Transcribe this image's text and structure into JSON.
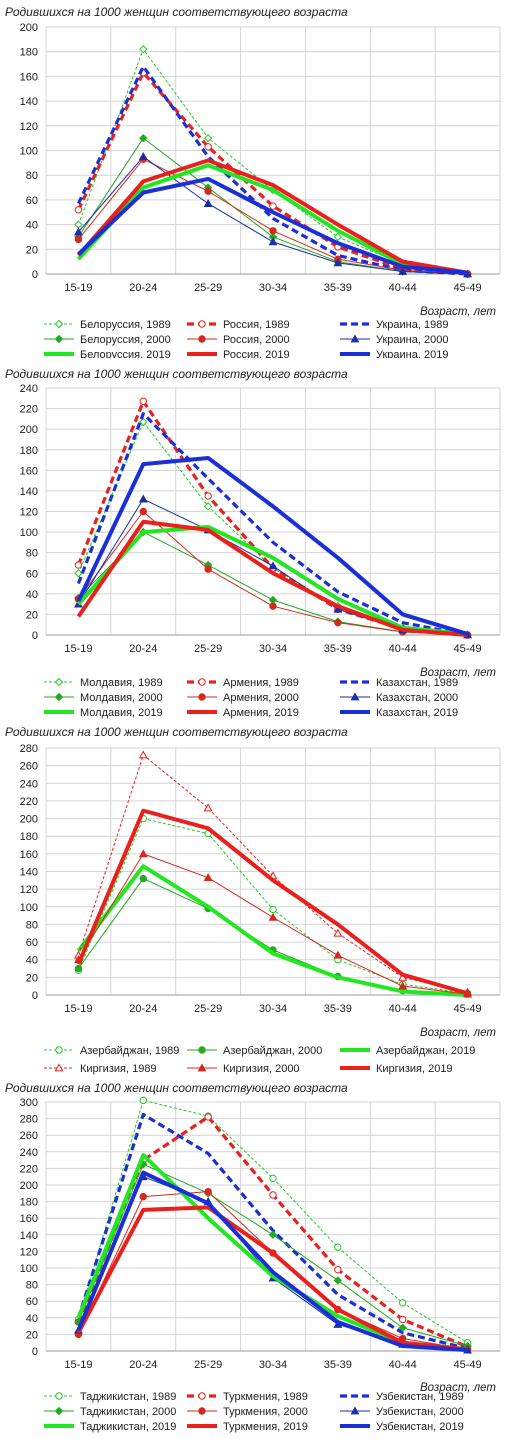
{
  "charts": [
    {
      "type": "line",
      "title": "Родившихся на 1000 женщин соответствующего возраста",
      "xlabel": "Возраст, лет",
      "ylabel": "",
      "categories": [
        "15-19",
        "20-24",
        "25-29",
        "30-34",
        "35-39",
        "40-44",
        "45-49"
      ],
      "ylim": [
        0,
        200
      ],
      "ystep": 20,
      "legend_cols": 3,
      "series": [
        {
          "name": "Белоруссия, 1989",
          "color": "#22cc22",
          "style": "thin-dash",
          "marker": "diamond-open",
          "values": [
            40,
            182,
            110,
            68,
            30,
            8,
            0
          ]
        },
        {
          "name": "Россия, 1989",
          "color": "#e8211d",
          "style": "thick-dash",
          "marker": "circle-open",
          "values": [
            52,
            163,
            103,
            55,
            22,
            4,
            0
          ]
        },
        {
          "name": "Украина, 1989",
          "color": "#1a2fd6",
          "style": "thick-dash",
          "marker": "none",
          "values": [
            57,
            168,
            95,
            45,
            15,
            3,
            0
          ]
        },
        {
          "name": "Белоруссия, 2000",
          "color": "#22aa22",
          "style": "thin",
          "marker": "diamond",
          "values": [
            30,
            110,
            70,
            30,
            10,
            2,
            0
          ]
        },
        {
          "name": "Россия, 2000",
          "color": "#d42a1e",
          "style": "thin",
          "marker": "circle",
          "values": [
            28,
            93,
            67,
            35,
            12,
            3,
            0
          ]
        },
        {
          "name": "Украина, 2000",
          "color": "#1a2fa6",
          "style": "thin",
          "marker": "triangle",
          "values": [
            34,
            95,
            57,
            26,
            9,
            2,
            0
          ]
        },
        {
          "name": "Белоруссия, 2019",
          "color": "#22e622",
          "style": "thick",
          "marker": "none",
          "values": [
            12,
            70,
            88,
            68,
            35,
            8,
            1
          ]
        },
        {
          "name": "Россия, 2019",
          "color": "#e8211d",
          "style": "thick",
          "marker": "none",
          "values": [
            15,
            75,
            92,
            72,
            40,
            10,
            1
          ]
        },
        {
          "name": "Украина, 2019",
          "color": "#1a2fd6",
          "style": "thick",
          "marker": "none",
          "values": [
            16,
            66,
            77,
            50,
            25,
            6,
            1
          ]
        }
      ]
    },
    {
      "type": "line",
      "title": "Родившихся на 1000 женщин соответствующего возраста",
      "xlabel": "Возраст, лет",
      "ylabel": "",
      "categories": [
        "15-19",
        "20-24",
        "25-29",
        "30-34",
        "35-39",
        "40-44",
        "45-49"
      ],
      "ylim": [
        0,
        240
      ],
      "ystep": 20,
      "legend_cols": 3,
      "series": [
        {
          "name": "Молдавия, 1989",
          "color": "#22cc22",
          "style": "thin-dash",
          "marker": "diamond-open",
          "values": [
            60,
            207,
            125,
            65,
            28,
            7,
            0
          ]
        },
        {
          "name": "Армения, 1989",
          "color": "#e8211d",
          "style": "thick-dash",
          "marker": "circle-open",
          "values": [
            68,
            227,
            135,
            65,
            25,
            6,
            0
          ]
        },
        {
          "name": "Казахстан, 1989",
          "color": "#1a2fd6",
          "style": "thick-dash",
          "marker": "none",
          "values": [
            50,
            215,
            152,
            90,
            42,
            12,
            0
          ]
        },
        {
          "name": "Молдавия, 2000",
          "color": "#22aa22",
          "style": "thin",
          "marker": "diamond",
          "values": [
            36,
            100,
            68,
            34,
            13,
            3,
            0
          ]
        },
        {
          "name": "Армения, 2000",
          "color": "#d42a1e",
          "style": "thin",
          "marker": "circle",
          "values": [
            35,
            120,
            64,
            28,
            12,
            3,
            0
          ]
        },
        {
          "name": "Казахстан, 2000",
          "color": "#1a2fa6",
          "style": "thin",
          "marker": "triangle",
          "values": [
            30,
            132,
            102,
            67,
            25,
            5,
            0
          ]
        },
        {
          "name": "Молдавия, 2019",
          "color": "#22e622",
          "style": "thick",
          "marker": "none",
          "values": [
            30,
            100,
            105,
            75,
            35,
            7,
            1
          ]
        },
        {
          "name": "Армения, 2019",
          "color": "#e8211d",
          "style": "thick",
          "marker": "none",
          "values": [
            18,
            110,
            102,
            60,
            28,
            5,
            0
          ]
        },
        {
          "name": "Казахстан, 2019",
          "color": "#1a2fd6",
          "style": "thick",
          "marker": "none",
          "values": [
            33,
            166,
            172,
            125,
            75,
            20,
            1
          ]
        }
      ]
    },
    {
      "type": "line",
      "title": "Родившихся на 1000 женщин соответствующего возраста",
      "xlabel": "Возраст, лет",
      "ylabel": "",
      "categories": [
        "15-19",
        "20-24",
        "25-29",
        "30-34",
        "35-39",
        "40-44",
        "45-49"
      ],
      "ylim": [
        0,
        280
      ],
      "ystep": 20,
      "legend_cols": 3,
      "series": [
        {
          "name": "Азербайджан, 1989",
          "color": "#22cc22",
          "style": "thin-dash",
          "marker": "circle-open",
          "values": [
            28,
            200,
            183,
            97,
            40,
            12,
            2
          ]
        },
        {
          "name": "Азербайджан, 2000",
          "color": "#22aa22",
          "style": "thin",
          "marker": "circle",
          "values": [
            30,
            132,
            98,
            51,
            21,
            5,
            1
          ]
        },
        {
          "name": "Азербайджан, 2019",
          "color": "#22e622",
          "style": "thick",
          "marker": "none",
          "values": [
            50,
            146,
            100,
            47,
            20,
            4,
            0
          ]
        },
        {
          "name": "Киргизия, 1989",
          "color": "#e8211d",
          "style": "thin-dash",
          "marker": "triangle-open",
          "values": [
            45,
            272,
            212,
            135,
            70,
            20,
            3
          ]
        },
        {
          "name": "Киргизия, 2000",
          "color": "#d42a1e",
          "style": "thin",
          "marker": "triangle",
          "values": [
            40,
            160,
            133,
            88,
            45,
            10,
            1
          ]
        },
        {
          "name": "Киргизия, 2019",
          "color": "#e8211d",
          "style": "thick",
          "marker": "none",
          "values": [
            35,
            209,
            189,
            130,
            80,
            23,
            2
          ]
        }
      ]
    },
    {
      "type": "line",
      "title": "Родившихся на 1000 женщин соответствующего возраста",
      "xlabel": "Возраст, лет",
      "ylabel": "",
      "categories": [
        "15-19",
        "20-24",
        "25-29",
        "30-34",
        "35-39",
        "40-44",
        "45-49"
      ],
      "ylim": [
        0,
        300
      ],
      "ystep": 20,
      "legend_cols": 3,
      "series": [
        {
          "name": "Таджикистан, 1989",
          "color": "#22cc22",
          "style": "thin-dash",
          "marker": "circle-open",
          "values": [
            38,
            302,
            283,
            208,
            125,
            58,
            10
          ]
        },
        {
          "name": "Туркмения, 1989",
          "color": "#e8211d",
          "style": "thick-dash",
          "marker": "circle-open",
          "values": [
            35,
            230,
            282,
            188,
            98,
            38,
            5
          ]
        },
        {
          "name": "Узбекистан, 1989",
          "color": "#1a2fd6",
          "style": "thick-dash",
          "marker": "none",
          "values": [
            40,
            285,
            238,
            145,
            68,
            22,
            3
          ]
        },
        {
          "name": "Таджикистан, 2000",
          "color": "#22aa22",
          "style": "thin",
          "marker": "diamond",
          "values": [
            35,
            225,
            190,
            140,
            85,
            28,
            6
          ]
        },
        {
          "name": "Туркмения, 2000",
          "color": "#d42a1e",
          "style": "thin",
          "marker": "circle",
          "values": [
            20,
            186,
            192,
            118,
            50,
            15,
            2
          ]
        },
        {
          "name": "Узбекистан, 2000",
          "color": "#1a2fa6",
          "style": "thin",
          "marker": "triangle",
          "values": [
            25,
            210,
            180,
            88,
            32,
            8,
            1
          ]
        },
        {
          "name": "Таджикистан, 2019",
          "color": "#22e622",
          "style": "thick",
          "marker": "none",
          "values": [
            40,
            236,
            160,
            90,
            42,
            10,
            2
          ]
        },
        {
          "name": "Туркмения, 2019",
          "color": "#e8211d",
          "style": "thick",
          "marker": "none",
          "values": [
            22,
            170,
            173,
            118,
            50,
            10,
            2
          ]
        },
        {
          "name": "Узбекистан, 2019",
          "color": "#1a2fd6",
          "style": "thick",
          "marker": "none",
          "values": [
            25,
            215,
            178,
            95,
            35,
            6,
            1
          ]
        }
      ]
    }
  ]
}
